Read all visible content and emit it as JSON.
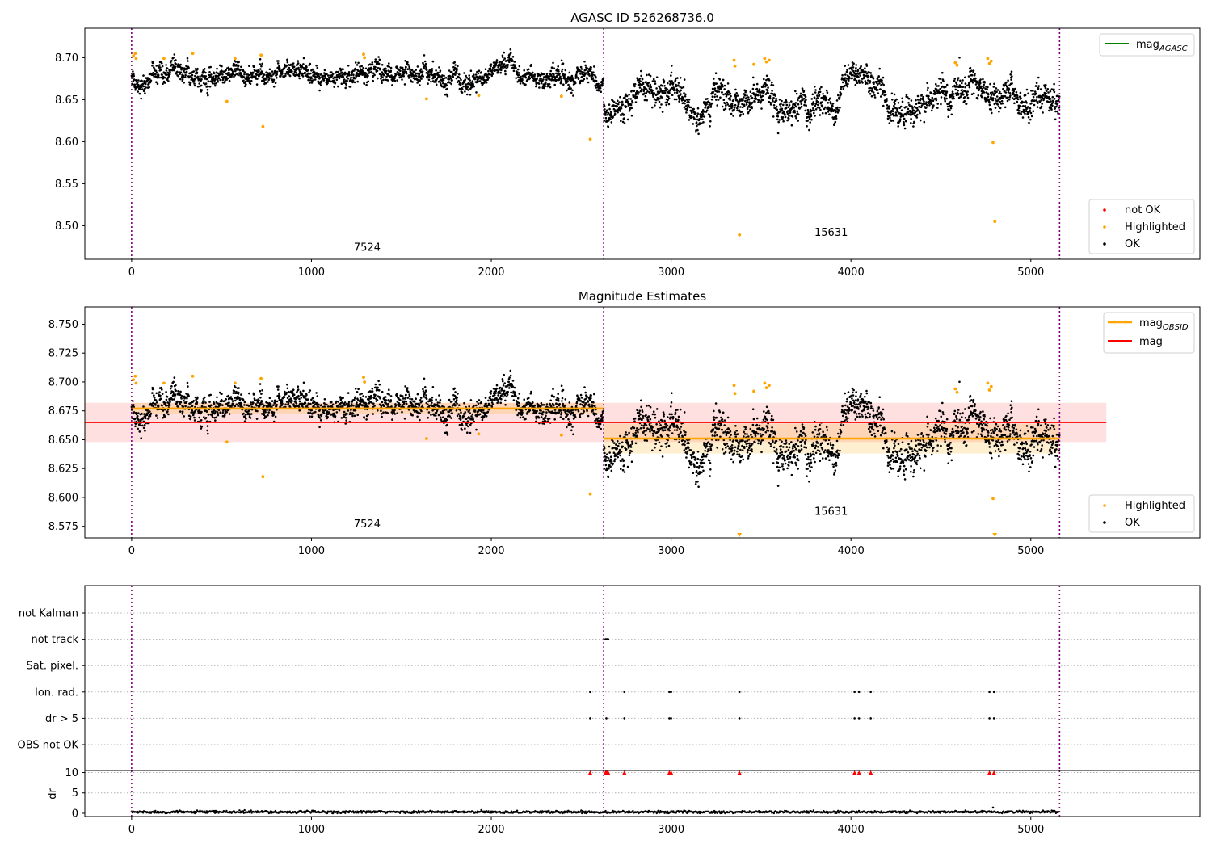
{
  "chart_data": [
    {
      "type": "scatter",
      "title": "AGASC ID 526268736.0",
      "xlim": [
        -260,
        5940
      ],
      "ylim": [
        8.46,
        8.735
      ],
      "x_ticks": [
        0,
        1000,
        2000,
        3000,
        4000,
        5000
      ],
      "y_ticks": [
        8.5,
        8.55,
        8.6,
        8.65,
        8.7
      ],
      "x_tick_labels": [
        "0",
        "1000",
        "2000",
        "3000",
        "4000",
        "5000"
      ],
      "y_tick_labels": [
        "8.50",
        "8.55",
        "8.60",
        "8.65",
        "8.70"
      ],
      "obsid_boundaries": [
        0,
        2625,
        5160
      ],
      "obsid_labels": [
        {
          "text": "7524",
          "x": 1310,
          "y": 8.47
        },
        {
          "text": "15631",
          "x": 3890,
          "y": 8.488
        }
      ],
      "segments": [
        {
          "x_start": 0,
          "x_end": 2625,
          "mean": 8.678,
          "sd": 0.009
        },
        {
          "x_start": 2625,
          "x_end": 5160,
          "mean": 8.651,
          "sd": 0.013
        }
      ],
      "highlighted_points": [
        {
          "x": 10,
          "y": 8.702
        },
        {
          "x": 20,
          "y": 8.705
        },
        {
          "x": 25,
          "y": 8.699
        },
        {
          "x": 180,
          "y": 8.699
        },
        {
          "x": 340,
          "y": 8.705
        },
        {
          "x": 530,
          "y": 8.648
        },
        {
          "x": 575,
          "y": 8.699
        },
        {
          "x": 720,
          "y": 8.703
        },
        {
          "x": 730,
          "y": 8.618
        },
        {
          "x": 1290,
          "y": 8.704
        },
        {
          "x": 1295,
          "y": 8.7
        },
        {
          "x": 1640,
          "y": 8.651
        },
        {
          "x": 1930,
          "y": 8.655
        },
        {
          "x": 2390,
          "y": 8.654
        },
        {
          "x": 2550,
          "y": 8.603
        },
        {
          "x": 3350,
          "y": 8.697
        },
        {
          "x": 3355,
          "y": 8.69
        },
        {
          "x": 3380,
          "y": 8.489
        },
        {
          "x": 3460,
          "y": 8.692
        },
        {
          "x": 3520,
          "y": 8.699
        },
        {
          "x": 3530,
          "y": 8.695
        },
        {
          "x": 3545,
          "y": 8.697
        },
        {
          "x": 4580,
          "y": 8.694
        },
        {
          "x": 4590,
          "y": 8.691
        },
        {
          "x": 4760,
          "y": 8.699
        },
        {
          "x": 4770,
          "y": 8.693
        },
        {
          "x": 4780,
          "y": 8.696
        },
        {
          "x": 4790,
          "y": 8.599
        },
        {
          "x": 4800,
          "y": 8.505
        }
      ],
      "legends": [
        {
          "position": "upper-right",
          "entries": [
            {
              "label": "mag",
              "subscript": "AGASC",
              "color": "#008000",
              "marker": "line"
            }
          ]
        },
        {
          "position": "lower-right",
          "entries": [
            {
              "label": "not OK",
              "color": "#ff0000",
              "marker": "dot"
            },
            {
              "label": "Highlighted",
              "color": "#ffa500",
              "marker": "dot"
            },
            {
              "label": "OK",
              "color": "#000000",
              "marker": "dot"
            }
          ]
        }
      ]
    },
    {
      "type": "scatter",
      "title": "Magnitude Estimates",
      "xlim": [
        -260,
        5940
      ],
      "ylim": [
        8.565,
        8.765
      ],
      "x_ticks": [
        0,
        1000,
        2000,
        3000,
        4000,
        5000
      ],
      "y_ticks": [
        8.575,
        8.6,
        8.625,
        8.65,
        8.675,
        8.7,
        8.725,
        8.75
      ],
      "x_tick_labels": [
        "0",
        "1000",
        "2000",
        "3000",
        "4000",
        "5000"
      ],
      "y_tick_labels": [
        "8.575",
        "8.600",
        "8.625",
        "8.650",
        "8.675",
        "8.700",
        "8.725",
        "8.750"
      ],
      "obsid_boundaries": [
        0,
        2625,
        5160
      ],
      "obsid_labels": [
        {
          "text": "7524",
          "x": 1310,
          "y": 8.574
        },
        {
          "text": "15631",
          "x": 3890,
          "y": 8.585
        }
      ],
      "overall_mag": {
        "value": 8.665,
        "band_low": 8.648,
        "band_high": 8.682,
        "x_start": -260,
        "x_end": 5420,
        "color": "#ff0000"
      },
      "obsid_mags": [
        {
          "x_start": 0,
          "x_end": 2625,
          "value": 8.677,
          "band_low": 8.672,
          "band_high": 8.682
        },
        {
          "x_start": 2625,
          "x_end": 5160,
          "value": 8.651,
          "band_low": 8.638,
          "band_high": 8.664
        }
      ],
      "segments": [
        {
          "x_start": 0,
          "x_end": 2625,
          "mean": 8.678,
          "sd": 0.009
        },
        {
          "x_start": 2625,
          "x_end": 5160,
          "mean": 8.651,
          "sd": 0.013
        }
      ],
      "highlighted_points": [
        {
          "x": 10,
          "y": 8.702
        },
        {
          "x": 20,
          "y": 8.705
        },
        {
          "x": 25,
          "y": 8.699
        },
        {
          "x": 180,
          "y": 8.699
        },
        {
          "x": 340,
          "y": 8.705
        },
        {
          "x": 530,
          "y": 8.648
        },
        {
          "x": 575,
          "y": 8.699
        },
        {
          "x": 720,
          "y": 8.703
        },
        {
          "x": 730,
          "y": 8.618
        },
        {
          "x": 1290,
          "y": 8.704
        },
        {
          "x": 1295,
          "y": 8.7
        },
        {
          "x": 1640,
          "y": 8.651
        },
        {
          "x": 1930,
          "y": 8.655
        },
        {
          "x": 2390,
          "y": 8.654
        },
        {
          "x": 2550,
          "y": 8.603
        },
        {
          "x": 3350,
          "y": 8.697
        },
        {
          "x": 3355,
          "y": 8.69
        },
        {
          "x": 3460,
          "y": 8.692
        },
        {
          "x": 3520,
          "y": 8.699
        },
        {
          "x": 3530,
          "y": 8.695
        },
        {
          "x": 3545,
          "y": 8.697
        },
        {
          "x": 4580,
          "y": 8.694
        },
        {
          "x": 4590,
          "y": 8.691
        },
        {
          "x": 4760,
          "y": 8.699
        },
        {
          "x": 4770,
          "y": 8.693
        },
        {
          "x": 4780,
          "y": 8.696
        },
        {
          "x": 4790,
          "y": 8.599
        }
      ],
      "offscale_markers": [
        {
          "x": 3380
        },
        {
          "x": 4800
        }
      ],
      "legends": [
        {
          "position": "upper-right",
          "entries": [
            {
              "label": "mag",
              "subscript": "OBSID",
              "color": "#ffa500",
              "marker": "line"
            },
            {
              "label": "mag",
              "subscript": "",
              "color": "#ff0000",
              "marker": "line"
            }
          ]
        },
        {
          "position": "lower-right",
          "entries": [
            {
              "label": "Highlighted",
              "color": "#ffa500",
              "marker": "dot"
            },
            {
              "label": "OK",
              "color": "#000000",
              "marker": "dot"
            }
          ]
        }
      ]
    },
    {
      "type": "scatter",
      "title": "",
      "xlim": [
        -260,
        5940
      ],
      "categories": [
        "not Kalman",
        "not track",
        "Sat. pixel.",
        "Ion. rad.",
        "dr > 5",
        "OBS not OK"
      ],
      "obsid_boundaries": [
        0,
        2625,
        5160
      ],
      "flag_points": {
        "not track": [
          2635,
          2640,
          2645,
          2650
        ],
        "Ion. rad.": [
          2550,
          2740,
          2990,
          3000,
          3380,
          4020,
          4045,
          4110,
          4770,
          4795
        ],
        "dr > 5": [
          2550,
          2640,
          2740,
          2990,
          3000,
          3380,
          4020,
          4045,
          4110,
          4770,
          4795
        ]
      }
    },
    {
      "type": "scatter",
      "title": "",
      "ylabel": "dr",
      "xlim": [
        -260,
        5940
      ],
      "ylim": [
        -0.8,
        10.5
      ],
      "x_ticks": [
        0,
        1000,
        2000,
        3000,
        4000,
        5000
      ],
      "y_ticks": [
        0,
        5,
        10
      ],
      "x_tick_labels": [
        "0",
        "1000",
        "2000",
        "3000",
        "4000",
        "5000"
      ],
      "y_tick_labels": [
        "0",
        "5",
        "10"
      ],
      "obsid_boundaries": [
        0,
        2625,
        5160
      ],
      "dr_typical": 0.3,
      "dr_points": [
        {
          "x": 4790,
          "y": 1.4
        }
      ],
      "clipped_points": [
        2550,
        2635,
        2640,
        2645,
        2650,
        2740,
        2990,
        3000,
        3380,
        4020,
        4045,
        4110,
        4770,
        4795
      ]
    }
  ]
}
